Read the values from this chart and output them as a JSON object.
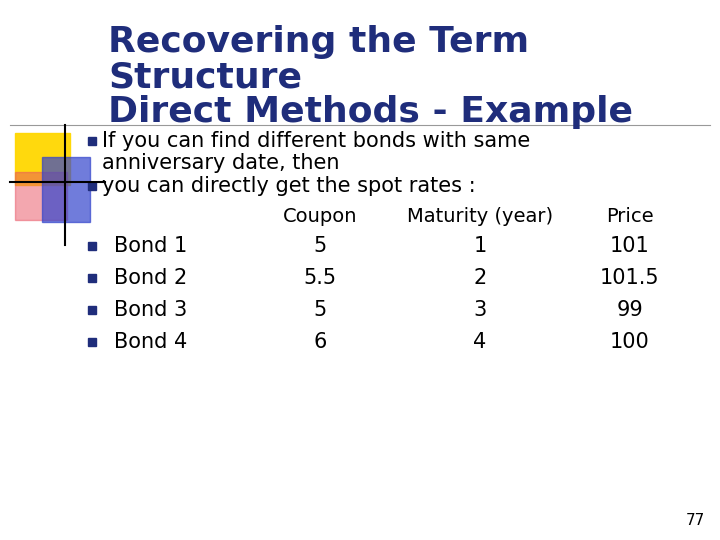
{
  "title_line1": "Recovering the Term",
  "title_line2": "Structure",
  "title_line3": "Direct Methods - Example",
  "title_color": "#1F2D7B",
  "title_fontsize": 26,
  "bg_color": "#FFFFFF",
  "bullet_square_color": "#1F2D7B",
  "body_fontsize": 15,
  "bullet1_line1": "If you can find different bonds with same",
  "bullet1_line2": "anniversary date, then",
  "bullet2": "you can directly get the spot rates :",
  "table_header_coupon": "Coupon",
  "table_header_maturity": "Maturity (year)",
  "table_header_price": "Price",
  "table_rows": [
    [
      "Bond 1",
      "5",
      "1",
      "101"
    ],
    [
      "Bond 2",
      "5.5",
      "2",
      "101.5"
    ],
    [
      "Bond 3",
      "5",
      "3",
      "99"
    ],
    [
      "Bond 4",
      "6",
      "4",
      "100"
    ]
  ],
  "slide_number": "77",
  "yellow_color": "#FFD700",
  "red_color": "#E85060",
  "blue_deco_color": "#3344CC",
  "separator_color": "#999999"
}
